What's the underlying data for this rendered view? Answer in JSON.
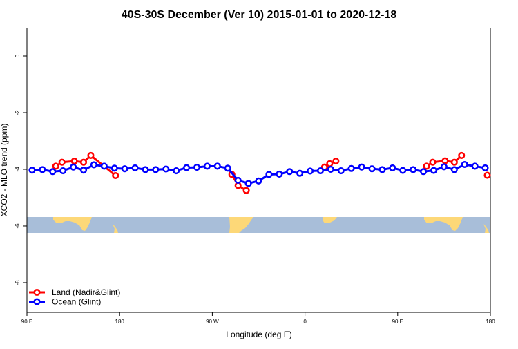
{
  "chart_data": {
    "type": "line",
    "title": "40S-30S December (Ver 10)   2015-01-01 to 2020-12-18",
    "xlabel": "Longitude (deg E)",
    "ylabel": "XCO2 - MLO trend (ppm)",
    "xlim": [
      90,
      540
    ],
    "ylim": [
      -9.05,
      1.0
    ],
    "x_ticks": [
      {
        "value": 90,
        "label": "90 E"
      },
      {
        "value": 180,
        "label": "180"
      },
      {
        "value": 270,
        "label": "90 W"
      },
      {
        "value": 360,
        "label": "0"
      },
      {
        "value": 450,
        "label": "90 E"
      },
      {
        "value": 540,
        "label": "180"
      }
    ],
    "y_ticks": [
      {
        "value": 0,
        "label": "0"
      },
      {
        "value": -2,
        "label": "-2"
      },
      {
        "value": -4,
        "label": "-4"
      },
      {
        "value": -6,
        "label": "-6"
      },
      {
        "value": -8,
        "label": "-8"
      }
    ],
    "grid": false,
    "legend_position": "bottom-left",
    "series": [
      {
        "name": "Land (Nadir&Glint)",
        "color": "#ff0000",
        "segments": [
          {
            "x": [
              118,
              124,
              136,
              145,
              152,
              176
            ],
            "y": [
              -3.89,
              -3.75,
              -3.71,
              -3.75,
              -3.51,
              -4.22
            ]
          },
          {
            "x": [
              289,
              295,
              303
            ],
            "y": [
              -4.18,
              -4.57,
              -4.75
            ]
          },
          {
            "x": [
              379,
              384,
              390
            ],
            "y": [
              -3.92,
              -3.8,
              -3.71
            ]
          },
          {
            "x": [
              478,
              484,
              496,
              505,
              512
            ],
            "y": [
              -3.89,
              -3.75,
              -3.7,
              -3.75,
              -3.51
            ]
          },
          {
            "x": [
              537
            ],
            "y": [
              -4.21
            ]
          }
        ]
      },
      {
        "name": "Ocean (Glint)",
        "color": "#0000ff",
        "segments": [
          {
            "x": [
              95,
              105,
              115,
              125,
              135,
              145,
              155,
              165,
              175,
              185,
              195,
              205,
              215,
              225,
              235,
              245,
              255,
              265,
              275,
              285,
              295,
              305,
              315,
              325,
              335,
              345,
              355,
              365,
              375,
              385,
              395,
              405,
              415,
              425,
              435,
              445,
              455,
              465,
              475,
              485,
              495,
              505,
              515,
              525,
              535
            ],
            "y": [
              -4.03,
              -4.01,
              -4.08,
              -4.05,
              -3.92,
              -4.03,
              -3.84,
              -3.89,
              -3.96,
              -3.98,
              -3.95,
              -4.01,
              -4.01,
              -3.99,
              -4.05,
              -3.94,
              -3.93,
              -3.89,
              -3.89,
              -3.96,
              -4.39,
              -4.5,
              -4.41,
              -4.18,
              -4.17,
              -4.08,
              -4.14,
              -4.06,
              -4.05,
              -4.0,
              -4.05,
              -3.97,
              -3.92,
              -3.98,
              -4.01,
              -3.95,
              -4.04,
              -4.01,
              -4.08,
              -4.04,
              -3.91,
              -4.01,
              -3.83,
              -3.89,
              -3.95
            ]
          }
        ]
      }
    ],
    "map_strip": {
      "ocean_color": "#a8bed9",
      "land_color": "#fdd878"
    }
  }
}
